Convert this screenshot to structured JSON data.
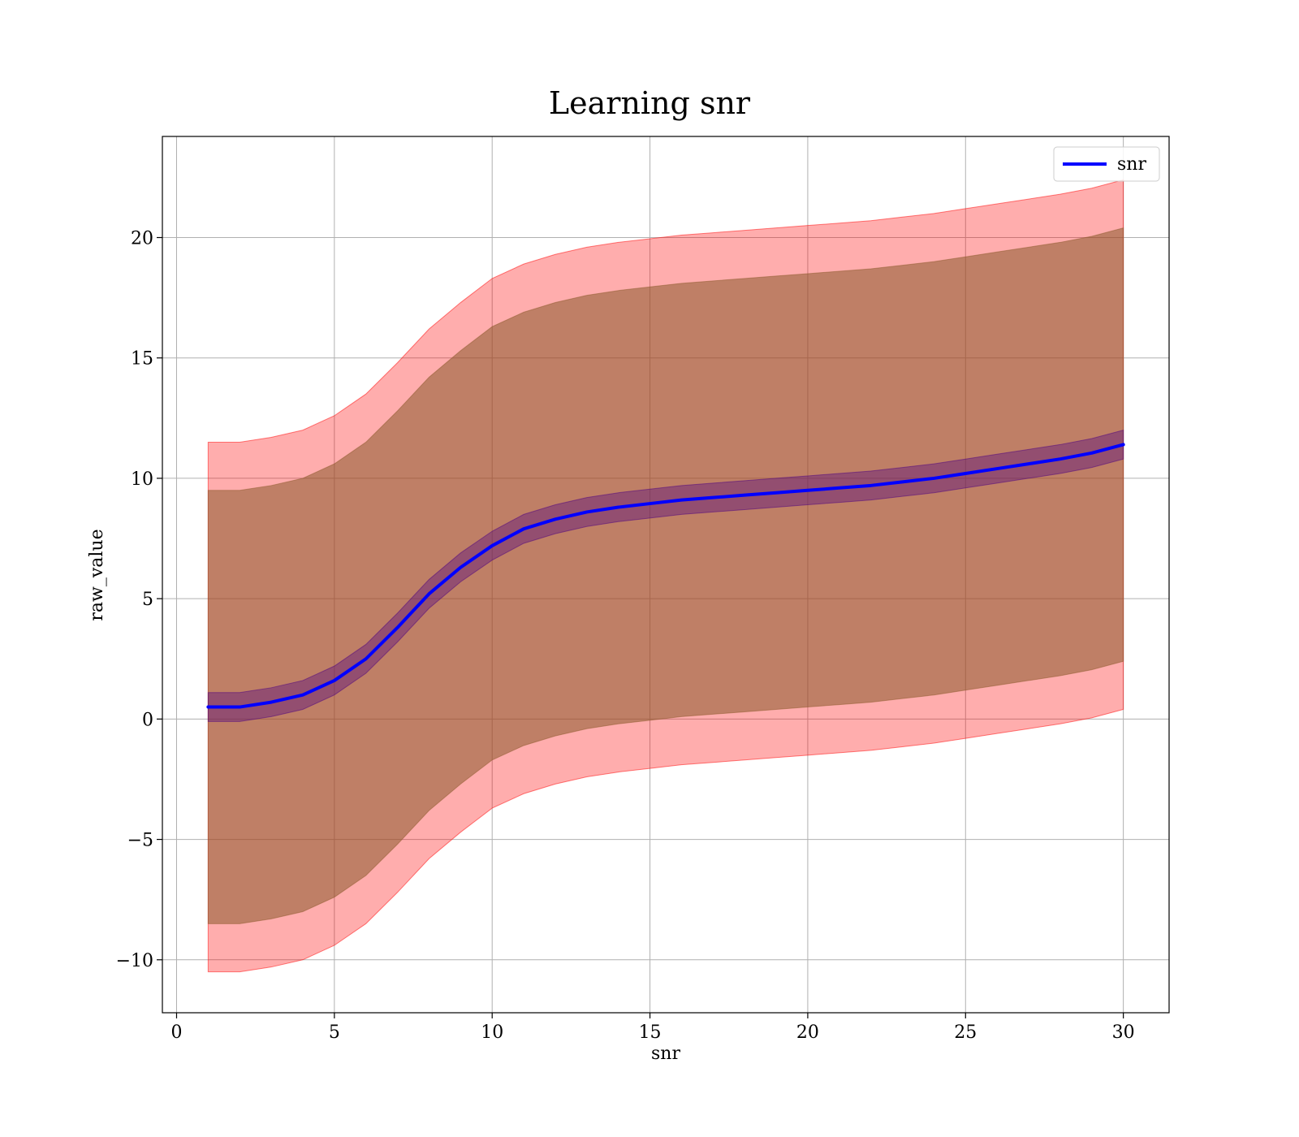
{
  "chart_data": {
    "type": "area",
    "title": "Learning snr",
    "xlabel": "snr",
    "ylabel": "raw_value",
    "xlim": [
      -0.45,
      31.45
    ],
    "ylim": [
      -12.2,
      24.2
    ],
    "xticks": [
      0,
      5,
      10,
      15,
      20,
      25,
      30
    ],
    "yticks": [
      -10,
      -5,
      0,
      5,
      10,
      15,
      20
    ],
    "xtick_labels": [
      "0",
      "5",
      "10",
      "15",
      "20",
      "25",
      "30"
    ],
    "ytick_labels": [
      "−10",
      "−5",
      "0",
      "5",
      "10",
      "15",
      "20"
    ],
    "grid": true,
    "legend": {
      "position": "top-right",
      "entries": [
        "snr"
      ]
    },
    "colors": {
      "line": "#0000ff",
      "outer_band": "#ff0000",
      "middle_band": "#8b5a2b",
      "inner_band": "#4b0082"
    },
    "x": [
      1,
      2,
      3,
      4,
      5,
      6,
      7,
      8,
      9,
      10,
      11,
      12,
      13,
      14,
      15,
      16,
      17,
      18,
      19,
      20,
      21,
      22,
      23,
      24,
      25,
      26,
      27,
      28,
      29,
      30
    ],
    "series": [
      {
        "name": "snr",
        "role": "mean",
        "values": [
          0.5,
          0.5,
          0.7,
          1.0,
          1.6,
          2.5,
          3.8,
          5.2,
          6.3,
          7.2,
          7.9,
          8.3,
          8.6,
          8.8,
          8.95,
          9.1,
          9.2,
          9.3,
          9.4,
          9.5,
          9.6,
          9.7,
          9.85,
          10.0,
          10.2,
          10.4,
          10.6,
          10.8,
          11.05,
          11.4
        ]
      },
      {
        "role": "inner_band",
        "lower": [
          -0.1,
          -0.1,
          0.1,
          0.4,
          1.0,
          1.9,
          3.2,
          4.6,
          5.7,
          6.6,
          7.3,
          7.7,
          8.0,
          8.2,
          8.35,
          8.5,
          8.6,
          8.7,
          8.8,
          8.9,
          9.0,
          9.1,
          9.25,
          9.4,
          9.6,
          9.8,
          10.0,
          10.2,
          10.45,
          10.8
        ],
        "upper": [
          1.1,
          1.1,
          1.3,
          1.6,
          2.2,
          3.1,
          4.4,
          5.8,
          6.9,
          7.8,
          8.5,
          8.9,
          9.2,
          9.4,
          9.55,
          9.7,
          9.8,
          9.9,
          10.0,
          10.1,
          10.2,
          10.3,
          10.45,
          10.6,
          10.8,
          11.0,
          11.2,
          11.4,
          11.65,
          12.0
        ]
      },
      {
        "role": "middle_band",
        "lower": [
          -8.5,
          -8.5,
          -8.3,
          -8.0,
          -7.4,
          -6.5,
          -5.2,
          -3.8,
          -2.7,
          -1.7,
          -1.1,
          -0.7,
          -0.4,
          -0.2,
          -0.05,
          0.1,
          0.2,
          0.3,
          0.4,
          0.5,
          0.6,
          0.7,
          0.85,
          1.0,
          1.2,
          1.4,
          1.6,
          1.8,
          2.05,
          2.4
        ],
        "upper": [
          9.5,
          9.5,
          9.7,
          10.0,
          10.6,
          11.5,
          12.8,
          14.2,
          15.3,
          16.3,
          16.9,
          17.3,
          17.6,
          17.8,
          17.95,
          18.1,
          18.2,
          18.3,
          18.4,
          18.5,
          18.6,
          18.7,
          18.85,
          19.0,
          19.2,
          19.4,
          19.6,
          19.8,
          20.05,
          20.4
        ]
      },
      {
        "role": "outer_band",
        "lower": [
          -10.5,
          -10.5,
          -10.3,
          -10.0,
          -9.4,
          -8.5,
          -7.2,
          -5.8,
          -4.7,
          -3.7,
          -3.1,
          -2.7,
          -2.4,
          -2.2,
          -2.05,
          -1.9,
          -1.8,
          -1.7,
          -1.6,
          -1.5,
          -1.4,
          -1.3,
          -1.15,
          -1.0,
          -0.8,
          -0.6,
          -0.4,
          -0.2,
          0.05,
          0.4
        ],
        "upper": [
          11.5,
          11.5,
          11.7,
          12.0,
          12.6,
          13.5,
          14.8,
          16.2,
          17.3,
          18.3,
          18.9,
          19.3,
          19.6,
          19.8,
          19.95,
          20.1,
          20.2,
          20.3,
          20.4,
          20.5,
          20.6,
          20.7,
          20.85,
          21.0,
          21.2,
          21.4,
          21.6,
          21.8,
          22.05,
          22.4
        ]
      }
    ]
  }
}
